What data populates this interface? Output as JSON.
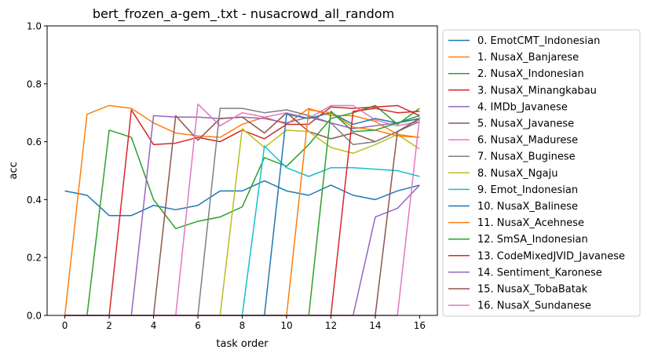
{
  "chart_data": {
    "type": "line",
    "title": "bert_frozen_a-gem_.txt - nusacrowd_all_random",
    "xlabel": "task order",
    "ylabel": "acc",
    "xlim": [
      -0.8,
      16.8
    ],
    "ylim": [
      0.0,
      1.0
    ],
    "xticks": [
      0,
      2,
      4,
      6,
      8,
      10,
      12,
      14,
      16
    ],
    "yticks": [
      0.0,
      0.2,
      0.4,
      0.6,
      0.8,
      1.0
    ],
    "xtick_labels": [
      "0",
      "2",
      "4",
      "6",
      "8",
      "10",
      "12",
      "14",
      "16"
    ],
    "ytick_labels": [
      "0.0",
      "0.2",
      "0.4",
      "0.6",
      "0.8",
      "1.0"
    ],
    "grid": false,
    "legend_position": "outside-right",
    "x": [
      0,
      1,
      2,
      3,
      4,
      5,
      6,
      7,
      8,
      9,
      10,
      11,
      12,
      13,
      14,
      15,
      16
    ],
    "series": [
      {
        "name": "0. EmotCMT_Indonesian",
        "color": "#1f77b4",
        "values": [
          0.43,
          0.415,
          0.345,
          0.345,
          0.38,
          0.365,
          0.38,
          0.43,
          0.43,
          0.465,
          0.43,
          0.415,
          0.45,
          0.415,
          0.4,
          0.43,
          0.45
        ]
      },
      {
        "name": "1. NusaX_Banjarese",
        "color": "#ff7f0e",
        "values": [
          0.0,
          0.695,
          0.725,
          0.715,
          0.665,
          0.63,
          0.62,
          0.615,
          0.66,
          0.685,
          0.66,
          0.715,
          0.69,
          0.69,
          0.67,
          0.625,
          0.615
        ]
      },
      {
        "name": "2. NusaX_Indonesian",
        "color": "#2ca02c",
        "values": [
          0.0,
          0.0,
          0.64,
          0.615,
          0.4,
          0.3,
          0.325,
          0.34,
          0.375,
          0.545,
          0.515,
          0.59,
          0.68,
          0.7,
          0.725,
          0.66,
          0.715
        ]
      },
      {
        "name": "3. NusaX_Minangkabau",
        "color": "#d62728",
        "values": [
          0.0,
          0.0,
          0.0,
          0.71,
          0.59,
          0.595,
          0.615,
          0.6,
          0.64,
          0.61,
          0.66,
          0.66,
          0.72,
          0.715,
          0.72,
          0.725,
          0.69
        ]
      },
      {
        "name": "4. IMDb_Javanese",
        "color": "#9467bd",
        "values": [
          0.0,
          0.0,
          0.0,
          0.0,
          0.69,
          0.685,
          0.685,
          0.68,
          0.685,
          0.68,
          0.665,
          0.685,
          0.665,
          0.645,
          0.655,
          0.665,
          0.68
        ]
      },
      {
        "name": "5. NusaX_Javanese",
        "color": "#8c564b",
        "values": [
          0.0,
          0.0,
          0.0,
          0.0,
          0.0,
          0.69,
          0.605,
          0.68,
          0.685,
          0.63,
          0.7,
          0.635,
          0.61,
          0.63,
          0.6,
          0.635,
          0.68
        ]
      },
      {
        "name": "6. NusaX_Madurese",
        "color": "#e377c2",
        "values": [
          0.0,
          0.0,
          0.0,
          0.0,
          0.0,
          0.0,
          0.73,
          0.655,
          0.7,
          0.685,
          0.7,
          0.68,
          0.725,
          0.725,
          0.675,
          0.655,
          0.67
        ]
      },
      {
        "name": "7. NusaX_Buginese",
        "color": "#7f7f7f",
        "values": [
          0.0,
          0.0,
          0.0,
          0.0,
          0.0,
          0.0,
          0.0,
          0.715,
          0.715,
          0.7,
          0.71,
          0.69,
          0.665,
          0.59,
          0.6,
          0.635,
          0.67
        ]
      },
      {
        "name": "8. NusaX_Ngaju",
        "color": "#bcbd22",
        "values": [
          0.0,
          0.0,
          0.0,
          0.0,
          0.0,
          0.0,
          0.0,
          0.0,
          0.645,
          0.58,
          0.64,
          0.635,
          0.58,
          0.56,
          0.59,
          0.625,
          0.575
        ]
      },
      {
        "name": "9. Emot_Indonesian",
        "color": "#17becf",
        "values": [
          0.0,
          0.0,
          0.0,
          0.0,
          0.0,
          0.0,
          0.0,
          0.0,
          0.0,
          0.585,
          0.51,
          0.48,
          0.51,
          0.51,
          0.505,
          0.5,
          0.48
        ]
      },
      {
        "name": "10. NusaX_Balinese",
        "color": "#1f77b4",
        "values": [
          0.0,
          0.0,
          0.0,
          0.0,
          0.0,
          0.0,
          0.0,
          0.0,
          0.0,
          0.0,
          0.695,
          0.68,
          0.7,
          0.66,
          0.68,
          0.665,
          0.68
        ]
      },
      {
        "name": "11. NusaX_Acehnese",
        "color": "#ff7f0e",
        "values": [
          0.0,
          0.0,
          0.0,
          0.0,
          0.0,
          0.0,
          0.0,
          0.0,
          0.0,
          0.0,
          0.0,
          0.71,
          0.7,
          0.65,
          0.64,
          0.62,
          0.615
        ]
      },
      {
        "name": "12. SmSA_Indonesian",
        "color": "#2ca02c",
        "values": [
          0.0,
          0.0,
          0.0,
          0.0,
          0.0,
          0.0,
          0.0,
          0.0,
          0.0,
          0.0,
          0.0,
          0.0,
          0.705,
          0.635,
          0.64,
          0.665,
          0.69
        ]
      },
      {
        "name": "13. CodeMixedJVID_Javanese",
        "color": "#d62728",
        "values": [
          0.0,
          0.0,
          0.0,
          0.0,
          0.0,
          0.0,
          0.0,
          0.0,
          0.0,
          0.0,
          0.0,
          0.0,
          0.0,
          0.705,
          0.715,
          0.7,
          0.705
        ]
      },
      {
        "name": "14. Sentiment_Karonese",
        "color": "#9467bd",
        "values": [
          0.0,
          0.0,
          0.0,
          0.0,
          0.0,
          0.0,
          0.0,
          0.0,
          0.0,
          0.0,
          0.0,
          0.0,
          0.0,
          0.0,
          0.34,
          0.37,
          0.45
        ]
      },
      {
        "name": "15. NusaX_TobaBatak",
        "color": "#8c564b",
        "values": [
          0.0,
          0.0,
          0.0,
          0.0,
          0.0,
          0.0,
          0.0,
          0.0,
          0.0,
          0.0,
          0.0,
          0.0,
          0.0,
          0.0,
          0.0,
          0.635,
          0.68
        ]
      },
      {
        "name": "16. NusaX_Sundanese",
        "color": "#e377c2",
        "values": [
          0.0,
          0.0,
          0.0,
          0.0,
          0.0,
          0.0,
          0.0,
          0.0,
          0.0,
          0.0,
          0.0,
          0.0,
          0.0,
          0.0,
          0.0,
          0.0,
          0.685
        ]
      }
    ]
  }
}
